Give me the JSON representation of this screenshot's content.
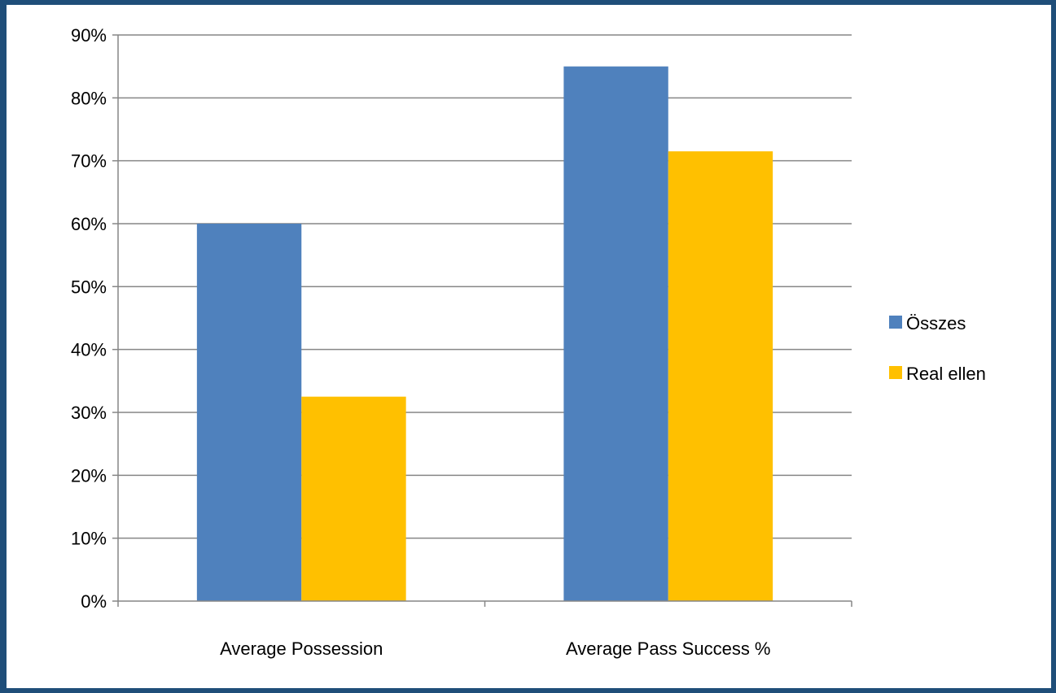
{
  "chart_data": {
    "type": "bar",
    "categories": [
      "Average Possession",
      "Average Pass Success %"
    ],
    "series": [
      {
        "name": "Összes",
        "values": [
          60,
          85
        ],
        "color": "#4f81bd"
      },
      {
        "name": "Real ellen",
        "values": [
          32.5,
          71.5
        ],
        "color": "#ffc000"
      }
    ],
    "ylim": [
      0,
      90
    ],
    "ytick_step": 10,
    "ytick_format": "percent",
    "grid": true,
    "legend": "right",
    "title": "",
    "xlabel": "",
    "ylabel": ""
  }
}
